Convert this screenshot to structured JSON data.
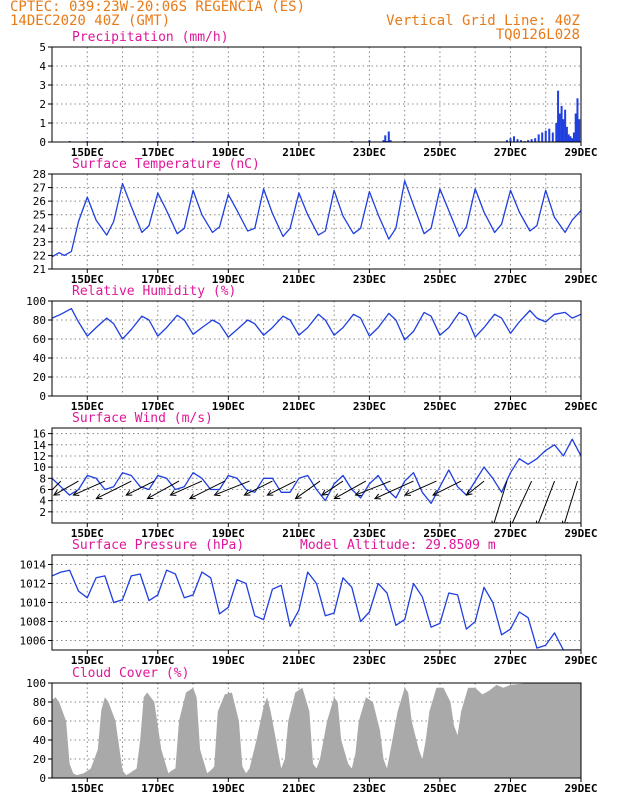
{
  "header": {
    "station": "CPTEC:   039:23W-20:06S   REGENCIA (ES)",
    "init": "14DEC2020 40Z (GMT)",
    "grid_note": "Vertical Grid Line: 40Z",
    "code": "TQ0126L028"
  },
  "colors": {
    "header": "#e87a17",
    "panel_title": "#e0179a",
    "series": "#1f3fe0",
    "cloud": "#a9a9a9",
    "arrow": "#000000"
  },
  "x_axis": {
    "domain": [
      14,
      29
    ],
    "ticks": [
      15,
      17,
      19,
      21,
      23,
      25,
      27,
      29
    ],
    "tick_labels": [
      "15DEC",
      "17DEC",
      "19DEC",
      "21DEC",
      "23DEC",
      "25DEC",
      "27DEC",
      "29DEC"
    ],
    "grid_days": [
      15,
      16,
      17,
      18,
      19,
      20,
      21,
      22,
      23,
      24,
      25,
      26,
      27,
      28,
      29
    ]
  },
  "chart_data": [
    {
      "id": "precip",
      "type": "bar",
      "title": "Precipitation (mm/h)",
      "ylim": [
        0,
        5
      ],
      "yticks": [
        0,
        1,
        2,
        3,
        4,
        5
      ],
      "x": [
        14.5,
        15.0,
        15.5,
        16.0,
        16.5,
        17.0,
        17.5,
        18.0,
        18.5,
        19.0,
        19.5,
        20.0,
        20.5,
        21.0,
        21.5,
        22.0,
        22.5,
        23.0,
        23.4,
        23.45,
        23.5,
        23.55,
        23.6,
        24.0,
        25.0,
        26.0,
        26.9,
        27.0,
        27.1,
        27.2,
        27.3,
        27.4,
        27.5,
        27.6,
        27.7,
        27.8,
        27.9,
        28.0,
        28.1,
        28.2,
        28.3,
        28.35,
        28.4,
        28.45,
        28.5,
        28.55,
        28.6,
        28.65,
        28.7,
        28.75,
        28.8,
        28.85,
        28.9,
        28.95
      ],
      "values": [
        0.05,
        0.05,
        0.03,
        0.05,
        0.03,
        0.05,
        0.03,
        0.05,
        0.02,
        0.05,
        0.02,
        0.03,
        0.02,
        0.03,
        0.02,
        0.03,
        0.05,
        0.1,
        0.1,
        0.35,
        0.05,
        0.55,
        0.1,
        0.05,
        0.05,
        0.05,
        0.1,
        0.2,
        0.3,
        0.15,
        0.1,
        0.05,
        0.1,
        0.15,
        0.2,
        0.4,
        0.5,
        0.6,
        0.7,
        0.5,
        1.0,
        2.7,
        1.5,
        1.9,
        1.2,
        1.7,
        0.8,
        0.4,
        0.3,
        0.2,
        0.5,
        1.5,
        2.3,
        1.2
      ]
    },
    {
      "id": "temp",
      "type": "line",
      "title": "Surface Temperature (nC)",
      "ylim": [
        21,
        28
      ],
      "yticks": [
        21,
        22,
        23,
        24,
        25,
        26,
        27,
        28
      ],
      "x": [
        14.0,
        14.2,
        14.35,
        14.55,
        14.75,
        15.0,
        15.25,
        15.55,
        15.75,
        16.0,
        16.25,
        16.55,
        16.75,
        17.0,
        17.25,
        17.55,
        17.75,
        18.0,
        18.25,
        18.55,
        18.75,
        19.0,
        19.25,
        19.55,
        19.75,
        20.0,
        20.25,
        20.55,
        20.75,
        21.0,
        21.25,
        21.55,
        21.75,
        22.0,
        22.25,
        22.55,
        22.75,
        23.0,
        23.25,
        23.55,
        23.75,
        24.0,
        24.25,
        24.55,
        24.75,
        25.0,
        25.25,
        25.55,
        25.75,
        26.0,
        26.25,
        26.55,
        26.75,
        27.0,
        27.25,
        27.55,
        27.75,
        28.0,
        28.25,
        28.55,
        28.75,
        29.0
      ],
      "values": [
        21.9,
        22.2,
        22.0,
        22.3,
        24.5,
        26.3,
        24.6,
        23.5,
        24.5,
        27.3,
        25.6,
        23.7,
        24.2,
        26.6,
        25.3,
        23.6,
        24.0,
        26.8,
        25.0,
        23.7,
        24.1,
        26.5,
        25.3,
        23.8,
        24.0,
        26.9,
        25.1,
        23.4,
        24.0,
        26.6,
        25.0,
        23.5,
        23.8,
        26.8,
        24.9,
        23.6,
        24.0,
        26.7,
        25.0,
        23.2,
        24.0,
        27.5,
        25.7,
        23.6,
        24.0,
        26.9,
        25.3,
        23.4,
        24.1,
        26.9,
        25.2,
        23.7,
        24.3,
        26.8,
        25.2,
        23.8,
        24.2,
        26.8,
        24.8,
        23.7,
        24.6,
        25.3
      ]
    },
    {
      "id": "rh",
      "type": "line",
      "title": "Relative Humidity (%)",
      "ylim": [
        0,
        100
      ],
      "yticks": [
        0,
        20,
        40,
        60,
        80,
        100
      ],
      "x": [
        14.0,
        14.25,
        14.55,
        14.75,
        15.0,
        15.25,
        15.55,
        15.75,
        16.0,
        16.25,
        16.55,
        16.75,
        17.0,
        17.25,
        17.55,
        17.75,
        18.0,
        18.25,
        18.55,
        18.75,
        19.0,
        19.25,
        19.55,
        19.75,
        20.0,
        20.25,
        20.55,
        20.75,
        21.0,
        21.25,
        21.55,
        21.75,
        22.0,
        22.25,
        22.55,
        22.75,
        23.0,
        23.25,
        23.55,
        23.75,
        24.0,
        24.25,
        24.55,
        24.75,
        25.0,
        25.25,
        25.55,
        25.75,
        26.0,
        26.25,
        26.55,
        26.75,
        27.0,
        27.25,
        27.55,
        27.75,
        28.0,
        28.25,
        28.55,
        28.75,
        29.0
      ],
      "values": [
        82,
        86,
        92,
        78,
        63,
        72,
        82,
        76,
        60,
        70,
        84,
        80,
        63,
        72,
        85,
        80,
        65,
        72,
        80,
        76,
        62,
        70,
        80,
        76,
        64,
        72,
        84,
        80,
        64,
        72,
        86,
        80,
        64,
        72,
        86,
        82,
        63,
        72,
        87,
        80,
        59,
        68,
        88,
        84,
        64,
        72,
        88,
        84,
        62,
        72,
        86,
        82,
        66,
        78,
        90,
        82,
        78,
        86,
        88,
        82,
        86
      ]
    },
    {
      "id": "wind",
      "type": "line",
      "title": "Surface Wind (m/s)",
      "ylim": [
        0,
        17
      ],
      "yticks": [
        2,
        4,
        6,
        8,
        10,
        12,
        14,
        16
      ],
      "x": [
        14.0,
        14.25,
        14.5,
        14.75,
        15.0,
        15.25,
        15.5,
        15.75,
        16.0,
        16.25,
        16.5,
        16.75,
        17.0,
        17.25,
        17.5,
        17.75,
        18.0,
        18.25,
        18.5,
        18.75,
        19.0,
        19.25,
        19.5,
        19.75,
        20.0,
        20.25,
        20.5,
        20.75,
        21.0,
        21.25,
        21.5,
        21.75,
        22.0,
        22.25,
        22.5,
        22.75,
        23.0,
        23.25,
        23.5,
        23.75,
        24.0,
        24.25,
        24.5,
        24.75,
        25.0,
        25.25,
        25.5,
        25.75,
        26.0,
        26.25,
        26.5,
        26.75,
        27.0,
        27.25,
        27.5,
        27.75,
        28.0,
        28.25,
        28.5,
        28.75,
        29.0
      ],
      "values": [
        8.0,
        6.5,
        5.0,
        6.0,
        8.5,
        8.0,
        6.0,
        6.5,
        9.0,
        8.5,
        6.5,
        6.0,
        8.5,
        8.0,
        6.0,
        6.5,
        9.0,
        8.0,
        6.0,
        6.0,
        8.5,
        8.0,
        6.0,
        5.5,
        8.0,
        8.0,
        5.5,
        5.5,
        8.0,
        8.5,
        6.0,
        4.0,
        7.0,
        8.5,
        6.0,
        4.5,
        7.0,
        8.5,
        6.0,
        4.5,
        7.5,
        9.0,
        5.5,
        3.5,
        6.5,
        9.5,
        6.5,
        5.0,
        7.5,
        10.0,
        8.0,
        5.5,
        9.0,
        11.5,
        10.5,
        11.5,
        13.0,
        14.0,
        12.0,
        15.0,
        12.0
      ],
      "arrows_x": [
        14.25,
        14.75,
        15.5,
        16.25,
        16.9,
        17.6,
        18.25,
        18.9,
        19.6,
        20.25,
        20.9,
        21.6,
        22.25,
        22.9,
        23.6,
        24.25,
        24.9,
        25.6,
        26.25,
        26.9,
        27.6,
        28.25,
        28.9
      ],
      "arrows_u": [
        2.5,
        3.5,
        4.5,
        5.0,
        4.0,
        4.5,
        4.5,
        5.0,
        5.0,
        4.0,
        4.0,
        3.5,
        3.0,
        4.5,
        5.0,
        5.5,
        4.5,
        4.0,
        2.5,
        2.0,
        3.0,
        2.5,
        2.0
      ],
      "arrows_v": [
        2.5,
        2.0,
        2.0,
        2.5,
        2.0,
        2.5,
        2.0,
        2.5,
        2.0,
        2.0,
        2.0,
        2.5,
        2.0,
        2.5,
        2.0,
        2.5,
        2.0,
        2.0,
        2.0,
        6.5,
        6.5,
        6.5,
        6.5
      ]
    },
    {
      "id": "pres",
      "type": "line",
      "title": "Surface Pressure (hPa)",
      "extra_label": "Model Altitude: 29.8509 m",
      "ylim": [
        1005,
        1015
      ],
      "yticks": [
        1006,
        1008,
        1010,
        1012,
        1014
      ],
      "x": [
        14.0,
        14.25,
        14.5,
        14.75,
        15.0,
        15.25,
        15.5,
        15.75,
        16.0,
        16.25,
        16.5,
        16.75,
        17.0,
        17.25,
        17.5,
        17.75,
        18.0,
        18.25,
        18.5,
        18.75,
        19.0,
        19.25,
        19.5,
        19.75,
        20.0,
        20.25,
        20.5,
        20.75,
        21.0,
        21.25,
        21.5,
        21.75,
        22.0,
        22.25,
        22.5,
        22.75,
        23.0,
        23.25,
        23.5,
        23.75,
        24.0,
        24.25,
        24.5,
        24.75,
        25.0,
        25.25,
        25.5,
        25.75,
        26.0,
        26.25,
        26.5,
        26.75,
        27.0,
        27.25,
        27.5,
        27.75,
        28.0,
        28.25,
        28.5,
        28.75,
        29.0
      ],
      "values": [
        1012.8,
        1013.2,
        1013.4,
        1011.2,
        1010.5,
        1012.6,
        1012.8,
        1010.0,
        1010.3,
        1012.8,
        1013.0,
        1010.2,
        1010.8,
        1013.4,
        1013.0,
        1010.5,
        1010.8,
        1013.2,
        1012.6,
        1008.8,
        1009.5,
        1012.4,
        1012.0,
        1008.6,
        1008.2,
        1011.4,
        1011.8,
        1007.5,
        1009.2,
        1013.2,
        1012.0,
        1008.6,
        1008.9,
        1012.6,
        1011.6,
        1008.0,
        1009.0,
        1012.0,
        1011.0,
        1007.6,
        1008.2,
        1012.0,
        1010.6,
        1007.4,
        1007.8,
        1011.0,
        1010.8,
        1007.2,
        1008.0,
        1011.6,
        1010.0,
        1006.6,
        1007.2,
        1009.0,
        1008.4,
        1005.2,
        1005.5,
        1006.8,
        1005.0,
        1005.0,
        1005.0
      ]
    },
    {
      "id": "cloud",
      "type": "area",
      "title": "Cloud Cover (%)",
      "ylim": [
        0,
        100
      ],
      "yticks": [
        0,
        20,
        40,
        60,
        80,
        100
      ],
      "x": [
        14.0,
        14.1,
        14.2,
        14.4,
        14.5,
        14.6,
        14.7,
        14.9,
        15.1,
        15.3,
        15.4,
        15.5,
        15.6,
        15.8,
        16.0,
        16.1,
        16.2,
        16.4,
        16.5,
        16.6,
        16.7,
        16.9,
        17.1,
        17.3,
        17.4,
        17.5,
        17.6,
        17.8,
        18.0,
        18.1,
        18.2,
        18.4,
        18.5,
        18.6,
        18.7,
        18.9,
        19.1,
        19.3,
        19.4,
        19.5,
        19.6,
        19.8,
        20.0,
        20.1,
        20.2,
        20.4,
        20.5,
        20.6,
        20.7,
        20.9,
        21.1,
        21.3,
        21.4,
        21.5,
        21.6,
        21.8,
        22.0,
        22.1,
        22.2,
        22.4,
        22.5,
        22.6,
        22.7,
        22.9,
        23.1,
        23.3,
        23.4,
        23.5,
        23.6,
        23.8,
        24.0,
        24.1,
        24.2,
        24.4,
        24.5,
        24.6,
        24.7,
        24.9,
        25.1,
        25.3,
        25.4,
        25.5,
        25.6,
        25.8,
        26.0,
        26.2,
        26.4,
        26.6,
        26.8,
        27.0,
        27.5,
        28.0,
        28.5,
        29.0
      ],
      "values": [
        82,
        85,
        80,
        60,
        15,
        5,
        3,
        5,
        10,
        30,
        72,
        85,
        80,
        60,
        8,
        3,
        5,
        10,
        40,
        85,
        90,
        80,
        30,
        5,
        8,
        10,
        60,
        90,
        95,
        85,
        30,
        5,
        8,
        12,
        70,
        88,
        90,
        60,
        12,
        5,
        10,
        40,
        75,
        85,
        70,
        30,
        10,
        20,
        60,
        90,
        95,
        70,
        15,
        10,
        20,
        60,
        85,
        80,
        40,
        15,
        10,
        25,
        60,
        85,
        80,
        50,
        20,
        10,
        30,
        70,
        95,
        90,
        60,
        30,
        20,
        40,
        70,
        95,
        95,
        80,
        55,
        45,
        70,
        95,
        95,
        88,
        92,
        98,
        95,
        98,
        100,
        100,
        100,
        100
      ]
    }
  ]
}
